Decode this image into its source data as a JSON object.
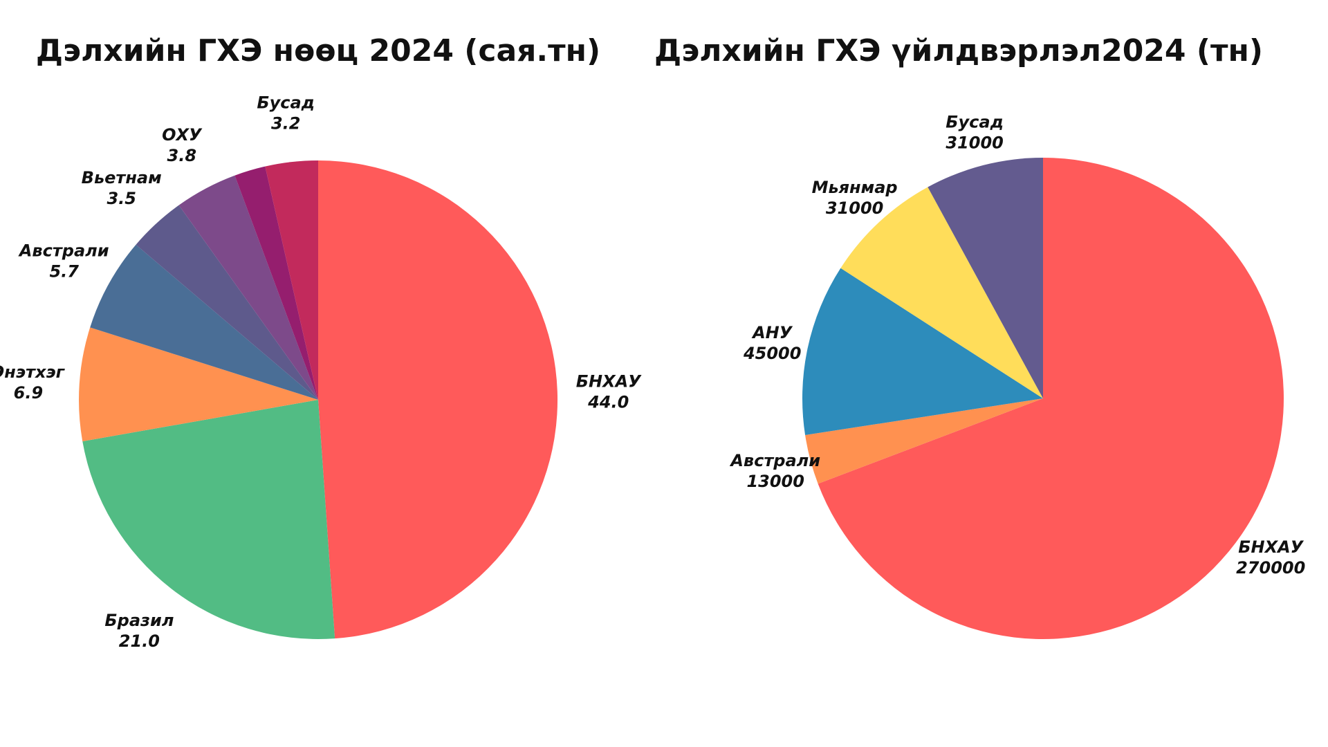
{
  "chart_data": [
    {
      "type": "pie",
      "title": "Дэлхийн ГХЭ нөөц 2024 (сая.тн)",
      "slices": [
        {
          "label": "БНХАУ",
          "value_text": "44.0",
          "value": 44.0,
          "color": "#FF5A5A"
        },
        {
          "label": "Бразил",
          "value_text": "21.0",
          "value": 21.0,
          "color": "#52BC84"
        },
        {
          "label": "Энэтхэг",
          "value_text": "6.9",
          "value": 6.9,
          "color": "#FF9150"
        },
        {
          "label": "Австрали",
          "value_text": "5.7",
          "value": 5.7,
          "color": "#4A6E96"
        },
        {
          "label": "Вьетнам",
          "value_text": "3.5",
          "value": 3.5,
          "color": "#5E5A8C"
        },
        {
          "label": "ОХУ",
          "value_text": "3.8",
          "value": 3.8,
          "color": "#7D4A8A"
        },
        {
          "label": "",
          "value_text": "",
          "value": 1.9,
          "color": "#951E6E"
        },
        {
          "label": "Бусад",
          "value_text": "3.2",
          "value": 3.2,
          "color": "#C22A5C"
        }
      ]
    },
    {
      "type": "pie",
      "title": "Дэлхийн ГХЭ үйлдвэрлэл2024 (тн)",
      "slices": [
        {
          "label": "БНХАУ",
          "value_text": "270000",
          "value": 270000,
          "color": "#FF5A5A"
        },
        {
          "label": "Австрали",
          "value_text": "13000",
          "value": 13000,
          "color": "#FF9150"
        },
        {
          "label": "АНУ",
          "value_text": "45000",
          "value": 45000,
          "color": "#2D8CBB"
        },
        {
          "label": "Мьянмар",
          "value_text": "31000",
          "value": 31000,
          "color": "#FFDD5A"
        },
        {
          "label": "Бусад",
          "value_text": "31000",
          "value": 31000,
          "color": "#635B8F"
        }
      ]
    }
  ]
}
